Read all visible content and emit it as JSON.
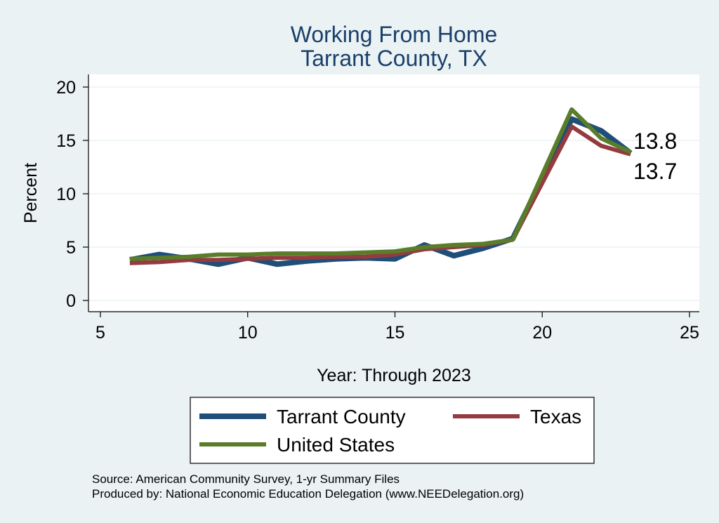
{
  "chart_data": {
    "type": "line",
    "title": "Working From Home",
    "subtitle": "Tarrant County, TX",
    "xlabel": "Year: Through 2023",
    "ylabel": "Percent",
    "xlim": [
      5,
      25
    ],
    "ylim": [
      0,
      20
    ],
    "x_ticks": [
      "5",
      "10",
      "15",
      "20",
      "25"
    ],
    "y_ticks": [
      "0",
      "5",
      "10",
      "15",
      "20"
    ],
    "grid": "horizontal",
    "x": [
      6,
      7,
      8,
      9,
      10,
      11,
      12,
      13,
      14,
      15,
      16,
      17,
      18,
      19,
      21,
      22,
      23
    ],
    "series": [
      {
        "name": "Tarrant County",
        "color": "#1f4e79",
        "values": [
          3.8,
          4.3,
          3.9,
          3.4,
          4.0,
          3.4,
          3.7,
          3.9,
          4.0,
          3.9,
          5.2,
          4.2,
          4.9,
          5.8,
          17.0,
          15.9,
          13.8
        ]
      },
      {
        "name": "Texas",
        "color": "#943b3f",
        "values": [
          3.5,
          3.6,
          3.8,
          3.8,
          3.9,
          4.0,
          4.0,
          4.1,
          4.1,
          4.3,
          4.8,
          5.0,
          5.2,
          5.7,
          16.3,
          14.5,
          13.7
        ]
      },
      {
        "name": "United States",
        "color": "#5a7d2a",
        "values": [
          3.9,
          4.0,
          4.1,
          4.3,
          4.3,
          4.4,
          4.4,
          4.4,
          4.5,
          4.6,
          5.0,
          5.2,
          5.3,
          5.7,
          17.9,
          15.2,
          13.9
        ]
      }
    ],
    "end_labels": [
      "13.8",
      "13.7"
    ],
    "legend_position": "bottom"
  },
  "source": "Source: American Community Survey, 1-yr Summary Files",
  "produced_by": "Produced by: National Economic Education Delegation (www.NEEDelegation.org)"
}
